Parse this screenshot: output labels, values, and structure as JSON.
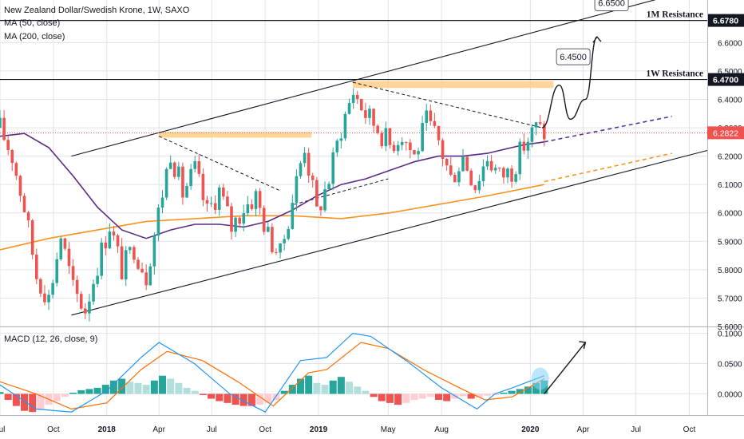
{
  "legend": {
    "title": "New Zealand Dollar/Swedish Krone, 1W, SAXO",
    "ma50": "MA (50, close)",
    "ma200": "MA (200, close)",
    "macd": "MACD (12, 26, close, 9)"
  },
  "colors": {
    "up": "#26a69a",
    "down": "#ef5350",
    "ma50": "#5b2a86",
    "ma200": "#f7931e",
    "macd": "#2196f3",
    "signal": "#ff6d00",
    "zone": "#ffcc80",
    "grid": "#e0e3eb",
    "axis_text": "#131722"
  },
  "chart_data": [
    {
      "type": "candlestick",
      "xlim": [
        "2017-07-01",
        "2020-11-01"
      ],
      "x_ticks": [
        {
          "date": "2017-07-01",
          "label": "Jul"
        },
        {
          "date": "2017-10-01",
          "label": "Oct"
        },
        {
          "date": "2018-01-01",
          "label": "2018"
        },
        {
          "date": "2018-04-01",
          "label": "Apr"
        },
        {
          "date": "2018-07-01",
          "label": "Jul"
        },
        {
          "date": "2018-10-01",
          "label": "Oct"
        },
        {
          "date": "2019-01-01",
          "label": "2019"
        },
        {
          "date": "2019-05-01",
          "label": "May"
        },
        {
          "date": "2019-08-01",
          "label": "Aug"
        },
        {
          "date": "2020-01-01",
          "label": "2020"
        },
        {
          "date": "2020-04-01",
          "label": "Apr"
        },
        {
          "date": "2020-07-01",
          "label": "Jul"
        },
        {
          "date": "2020-10-01",
          "label": "Oct"
        }
      ],
      "ylim": [
        5.6,
        6.75
      ],
      "y_ticks": [
        "5.6000",
        "5.7000",
        "5.8000",
        "5.9000",
        "6.0000",
        "6.1000",
        "6.2000",
        "6.3000",
        "6.4000",
        "6.5000",
        "6.6000"
      ],
      "close_path": [
        [
          "2017-07-01",
          6.3
        ],
        [
          "2017-07-22",
          6.2
        ],
        [
          "2017-08-12",
          6.02
        ],
        [
          "2017-09-02",
          5.78
        ],
        [
          "2017-09-23",
          5.7
        ],
        [
          "2017-10-14",
          5.92
        ],
        [
          "2017-11-04",
          5.73
        ],
        [
          "2017-11-25",
          5.66
        ],
        [
          "2017-12-16",
          5.82
        ],
        [
          "2018-01-06",
          5.96
        ],
        [
          "2018-01-27",
          5.8
        ],
        [
          "2018-02-17",
          5.88
        ],
        [
          "2018-03-10",
          5.78
        ],
        [
          "2018-03-31",
          6.0
        ],
        [
          "2018-04-21",
          6.22
        ],
        [
          "2018-05-12",
          6.07
        ],
        [
          "2018-06-02",
          6.15
        ],
        [
          "2018-06-23",
          6.0
        ],
        [
          "2018-07-14",
          6.08
        ],
        [
          "2018-08-04",
          5.95
        ],
        [
          "2018-08-25",
          6.02
        ],
        [
          "2018-09-15",
          6.06
        ],
        [
          "2018-10-06",
          5.92
        ],
        [
          "2018-10-27",
          5.85
        ],
        [
          "2018-11-17",
          6.05
        ],
        [
          "2018-12-08",
          6.24
        ],
        [
          "2018-12-29",
          6.0
        ],
        [
          "2019-01-19",
          6.12
        ],
        [
          "2019-02-09",
          6.3
        ],
        [
          "2019-03-02",
          6.43
        ],
        [
          "2019-03-23",
          6.35
        ],
        [
          "2019-04-13",
          6.3
        ],
        [
          "2019-05-04",
          6.24
        ],
        [
          "2019-05-25",
          6.28
        ],
        [
          "2019-06-15",
          6.2
        ],
        [
          "2019-07-06",
          6.32
        ],
        [
          "2019-07-27",
          6.25
        ],
        [
          "2019-08-17",
          6.12
        ],
        [
          "2019-09-07",
          6.2
        ],
        [
          "2019-09-28",
          6.1
        ],
        [
          "2019-10-19",
          6.2
        ],
        [
          "2019-11-09",
          6.13
        ],
        [
          "2019-11-30",
          6.15
        ],
        [
          "2019-12-21",
          6.24
        ],
        [
          "2020-01-11",
          6.3
        ],
        [
          "2020-01-25",
          6.2822
        ]
      ],
      "ma50": [
        [
          "2017-07-01",
          6.27
        ],
        [
          "2017-08-12",
          6.28
        ],
        [
          "2017-09-23",
          6.23
        ],
        [
          "2017-11-04",
          6.13
        ],
        [
          "2017-12-16",
          6.02
        ],
        [
          "2018-01-27",
          5.94
        ],
        [
          "2018-03-10",
          5.91
        ],
        [
          "2018-04-21",
          5.94
        ],
        [
          "2018-06-02",
          5.96
        ],
        [
          "2018-07-14",
          5.96
        ],
        [
          "2018-08-25",
          5.95
        ],
        [
          "2018-10-06",
          5.97
        ],
        [
          "2018-11-17",
          6.01
        ],
        [
          "2018-12-29",
          6.06
        ],
        [
          "2019-02-09",
          6.1
        ],
        [
          "2019-03-23",
          6.12
        ],
        [
          "2019-05-04",
          6.15
        ],
        [
          "2019-06-15",
          6.18
        ],
        [
          "2019-07-27",
          6.2
        ],
        [
          "2019-09-07",
          6.2
        ],
        [
          "2019-10-19",
          6.21
        ],
        [
          "2019-11-30",
          6.23
        ],
        [
          "2019-12-21",
          6.24
        ],
        [
          "2020-01-25",
          6.25
        ]
      ],
      "ma200": [
        [
          "2017-07-01",
          5.87
        ],
        [
          "2017-09-23",
          5.91
        ],
        [
          "2017-12-16",
          5.94
        ],
        [
          "2018-03-10",
          5.97
        ],
        [
          "2018-06-02",
          5.98
        ],
        [
          "2018-08-25",
          5.99
        ],
        [
          "2018-11-17",
          5.99
        ],
        [
          "2019-02-09",
          5.98
        ],
        [
          "2019-05-04",
          6.0
        ],
        [
          "2019-07-27",
          6.03
        ],
        [
          "2019-10-19",
          6.06
        ],
        [
          "2020-01-25",
          6.1
        ]
      ],
      "ma50_projection": [
        [
          "2020-01-25",
          6.25
        ],
        [
          "2020-09-01",
          6.34
        ]
      ],
      "ma200_projection": [
        [
          "2020-01-25",
          6.11
        ],
        [
          "2020-09-01",
          6.21
        ]
      ],
      "channel_upper": [
        [
          "2017-11-01",
          6.2
        ],
        [
          "2020-11-01",
          6.8
        ]
      ],
      "channel_lower": [
        [
          "2017-11-01",
          5.64
        ],
        [
          "2020-11-01",
          6.22
        ]
      ],
      "trendlines": [
        [
          [
            "2018-04-01",
            6.27
          ],
          [
            "2018-10-25",
            6.08
          ]
        ],
        [
          [
            "2019-03-01",
            6.46
          ],
          [
            "2020-01-21",
            6.3
          ]
        ],
        [
          [
            "2018-11-20",
            6.03
          ],
          [
            "2019-05-01",
            6.12
          ]
        ]
      ],
      "zones": [
        {
          "x0": "2018-04-01",
          "x1": "2018-12-20",
          "y0": 6.265,
          "y1": 6.285
        },
        {
          "x0": "2019-03-01",
          "x1": "2020-02-10",
          "y0": 6.44,
          "y1": 6.465
        }
      ],
      "projection_path": [
        [
          "2020-01-21",
          6.3
        ],
        [
          "2020-02-20",
          6.45
        ],
        [
          "2020-03-10",
          6.33
        ],
        [
          "2020-04-05",
          6.4
        ],
        [
          "2020-04-25",
          6.62
        ]
      ],
      "levels": [
        {
          "y": 6.47,
          "label": "1W Resistance",
          "value": "6.4700"
        },
        {
          "y": 6.678,
          "label": "1M Resistance",
          "value": "6.6780"
        }
      ],
      "last_price": {
        "y": 6.2822,
        "value": "6.2822"
      },
      "callouts": [
        {
          "x": "2020-03-15",
          "y": 6.55,
          "text": "6.4500"
        },
        {
          "x": "2020-05-20",
          "y": 6.74,
          "text": "6.6500"
        }
      ]
    },
    {
      "type": "macd",
      "ylim": [
        -0.035,
        0.11
      ],
      "y_ticks": [
        "0.0000",
        "0.0500",
        "0.1000"
      ],
      "histogram": [
        [
          "2017-07-01",
          0.003
        ],
        [
          "2017-07-15",
          -0.01
        ],
        [
          "2017-07-29",
          -0.02
        ],
        [
          "2017-08-12",
          -0.028
        ],
        [
          "2017-08-26",
          -0.03
        ],
        [
          "2017-09-09",
          -0.025
        ],
        [
          "2017-09-23",
          -0.018
        ],
        [
          "2017-10-07",
          -0.012
        ],
        [
          "2017-10-21",
          -0.005
        ],
        [
          "2017-11-04",
          0.002
        ],
        [
          "2017-11-18",
          0.006
        ],
        [
          "2017-12-02",
          0.008
        ],
        [
          "2017-12-16",
          0.01
        ],
        [
          "2017-12-30",
          0.015
        ],
        [
          "2018-01-13",
          0.022
        ],
        [
          "2018-01-27",
          0.025
        ],
        [
          "2018-02-10",
          0.02
        ],
        [
          "2018-02-24",
          0.018
        ],
        [
          "2018-03-10",
          0.015
        ],
        [
          "2018-03-24",
          0.022
        ],
        [
          "2018-04-07",
          0.03
        ],
        [
          "2018-04-21",
          0.025
        ],
        [
          "2018-05-05",
          0.018
        ],
        [
          "2018-05-19",
          0.01
        ],
        [
          "2018-06-02",
          0.005
        ],
        [
          "2018-06-16",
          -0.002
        ],
        [
          "2018-06-30",
          -0.008
        ],
        [
          "2018-07-14",
          -0.012
        ],
        [
          "2018-07-28",
          -0.015
        ],
        [
          "2018-08-11",
          -0.018
        ],
        [
          "2018-08-25",
          -0.02
        ],
        [
          "2018-09-08",
          -0.02
        ],
        [
          "2018-09-22",
          -0.018
        ],
        [
          "2018-10-06",
          -0.015
        ],
        [
          "2018-10-20",
          -0.01
        ],
        [
          "2018-11-03",
          0.005
        ],
        [
          "2018-11-17",
          0.015
        ],
        [
          "2018-12-01",
          0.025
        ],
        [
          "2018-12-15",
          0.03
        ],
        [
          "2018-12-29",
          0.018
        ],
        [
          "2019-01-12",
          0.015
        ],
        [
          "2019-01-26",
          0.022
        ],
        [
          "2019-02-09",
          0.028
        ],
        [
          "2019-02-23",
          0.02
        ],
        [
          "2019-03-09",
          0.012
        ],
        [
          "2019-03-23",
          0.005
        ],
        [
          "2019-04-06",
          -0.005
        ],
        [
          "2019-04-20",
          -0.012
        ],
        [
          "2019-05-04",
          -0.015
        ],
        [
          "2019-05-18",
          -0.018
        ],
        [
          "2019-06-01",
          -0.015
        ],
        [
          "2019-06-15",
          -0.01
        ],
        [
          "2019-06-29",
          -0.008
        ],
        [
          "2019-07-13",
          -0.005
        ],
        [
          "2019-07-27",
          -0.01
        ],
        [
          "2019-08-10",
          -0.012
        ],
        [
          "2019-08-24",
          -0.008
        ],
        [
          "2019-09-07",
          -0.004
        ],
        [
          "2019-09-21",
          -0.008
        ],
        [
          "2019-10-05",
          -0.006
        ],
        [
          "2019-10-19",
          -0.003
        ],
        [
          "2019-11-02",
          -0.002
        ],
        [
          "2019-11-16",
          0.002
        ],
        [
          "2019-11-30",
          0.005
        ],
        [
          "2019-12-14",
          0.008
        ],
        [
          "2019-12-28",
          0.012
        ],
        [
          "2020-01-11",
          0.018
        ],
        [
          "2020-01-25",
          0.022
        ]
      ],
      "macd_line": [
        [
          "2017-07-01",
          0.015
        ],
        [
          "2017-09-01",
          -0.025
        ],
        [
          "2017-11-01",
          -0.03
        ],
        [
          "2018-01-01",
          0.005
        ],
        [
          "2018-03-01",
          0.06
        ],
        [
          "2018-04-01",
          0.085
        ],
        [
          "2018-06-01",
          0.05
        ],
        [
          "2018-08-01",
          0.0
        ],
        [
          "2018-10-01",
          -0.03
        ],
        [
          "2018-12-01",
          0.055
        ],
        [
          "2019-01-15",
          0.06
        ],
        [
          "2019-03-01",
          0.1
        ],
        [
          "2019-04-01",
          0.095
        ],
        [
          "2019-06-01",
          0.055
        ],
        [
          "2019-08-01",
          0.01
        ],
        [
          "2019-10-01",
          -0.025
        ],
        [
          "2019-11-01",
          0.0
        ],
        [
          "2019-12-01",
          0.01
        ],
        [
          "2020-01-25",
          0.03
        ]
      ],
      "signal_line": [
        [
          "2017-07-01",
          0.02
        ],
        [
          "2017-09-01",
          0.0
        ],
        [
          "2017-11-01",
          -0.025
        ],
        [
          "2018-01-01",
          -0.015
        ],
        [
          "2018-03-01",
          0.04
        ],
        [
          "2018-04-15",
          0.07
        ],
        [
          "2018-06-15",
          0.055
        ],
        [
          "2018-08-15",
          0.02
        ],
        [
          "2018-10-15",
          -0.02
        ],
        [
          "2018-12-15",
          0.035
        ],
        [
          "2019-01-15",
          0.04
        ],
        [
          "2019-03-15",
          0.085
        ],
        [
          "2019-05-01",
          0.075
        ],
        [
          "2019-07-01",
          0.04
        ],
        [
          "2019-09-01",
          0.01
        ],
        [
          "2019-10-15",
          -0.01
        ],
        [
          "2019-12-01",
          -0.005
        ],
        [
          "2020-01-25",
          0.025
        ]
      ],
      "highlight": {
        "x": "2020-01-18",
        "y": 0.025
      },
      "arrow": [
        [
          "2020-01-25",
          0.0
        ],
        [
          "2020-04-05",
          0.085
        ]
      ]
    }
  ]
}
